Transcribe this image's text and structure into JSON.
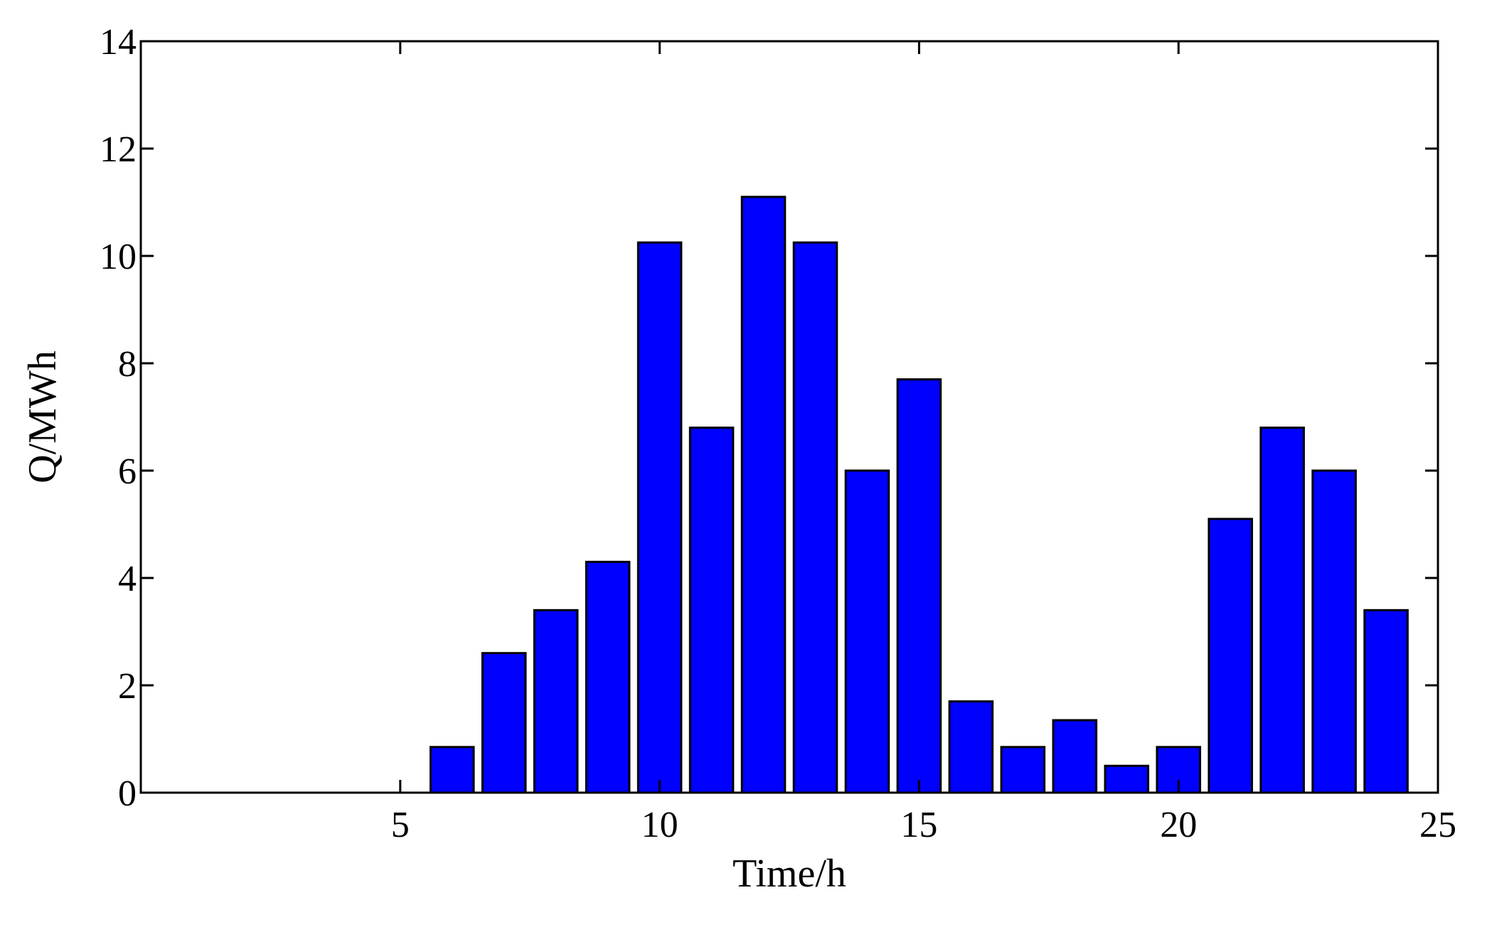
{
  "chart_data": {
    "type": "bar",
    "xlabel": "Time/h",
    "ylabel": "Q/MWh",
    "xlim": [
      0,
      25
    ],
    "ylim": [
      0,
      14
    ],
    "xticks": [
      5,
      10,
      15,
      20,
      25
    ],
    "yticks": [
      0,
      2,
      4,
      6,
      8,
      10,
      12,
      14
    ],
    "grid": false,
    "bar_color": "#0000ff",
    "edge_color": "#000000",
    "x": [
      6,
      7,
      8,
      9,
      10,
      11,
      12,
      13,
      14,
      15,
      16,
      17,
      18,
      19,
      20,
      21,
      22,
      23,
      24
    ],
    "values": [
      0.85,
      2.6,
      3.4,
      4.3,
      10.25,
      6.8,
      11.1,
      10.25,
      6.0,
      7.7,
      1.7,
      0.85,
      1.35,
      0.5,
      0.85,
      5.1,
      6.8,
      6.0,
      3.4
    ]
  }
}
